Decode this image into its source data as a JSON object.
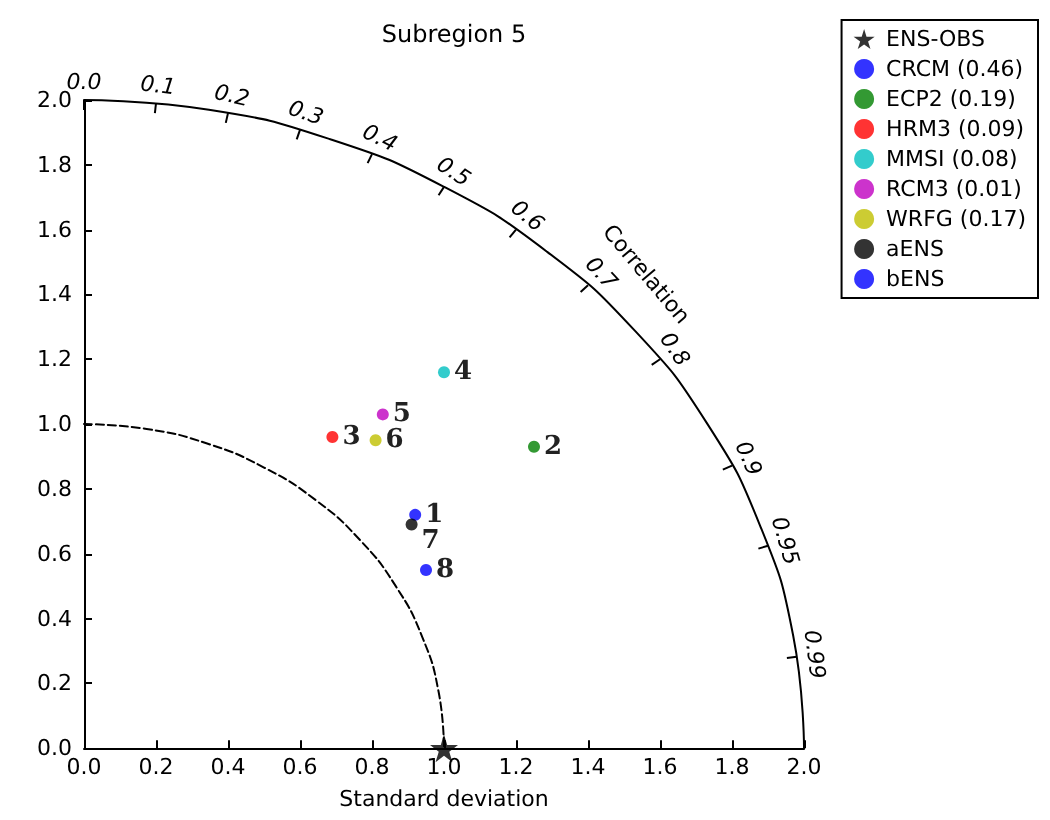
{
  "chart_data": {
    "type": "scatter",
    "title": "Subregion 5",
    "xlabel": "Standard deviation",
    "xlim": [
      0,
      2
    ],
    "ylim": [
      0,
      2
    ],
    "xticks": [
      {
        "value": 0,
        "label": "0.0"
      },
      {
        "value": 0.2,
        "label": "0.2"
      },
      {
        "value": 0.4,
        "label": "0.4"
      },
      {
        "value": 0.6,
        "label": "0.6"
      },
      {
        "value": 0.8,
        "label": "0.8"
      },
      {
        "value": 1.0,
        "label": "1.0"
      },
      {
        "value": 1.2,
        "label": "1.2"
      },
      {
        "value": 1.4,
        "label": "1.4"
      },
      {
        "value": 1.6,
        "label": "1.6"
      },
      {
        "value": 1.8,
        "label": "1.8"
      },
      {
        "value": 2.0,
        "label": "2.0"
      }
    ],
    "yticks": [
      {
        "value": 0,
        "label": "0.0"
      },
      {
        "value": 0.2,
        "label": "0.2"
      },
      {
        "value": 0.4,
        "label": "0.4"
      },
      {
        "value": 0.6,
        "label": "0.6"
      },
      {
        "value": 0.8,
        "label": "0.8"
      },
      {
        "value": 1.0,
        "label": "1.0"
      },
      {
        "value": 1.2,
        "label": "1.2"
      },
      {
        "value": 1.4,
        "label": "1.4"
      },
      {
        "value": 1.6,
        "label": "1.6"
      },
      {
        "value": 1.8,
        "label": "1.8"
      },
      {
        "value": 2.0,
        "label": "2.0"
      }
    ],
    "grid": false,
    "legend": "top right",
    "series": [
      {
        "name": "ENS-OBS",
        "color": "#000000",
        "marker": "star",
        "x": [
          1.0
        ],
        "values": [
          0
        ]
      },
      {
        "name": "CRCM (0.46)",
        "color": "#0000ff",
        "marker": "circle",
        "x": [
          0.92
        ],
        "values": [
          0.72
        ]
      },
      {
        "name": "ECP2 (0.19)",
        "color": "#008000",
        "marker": "circle",
        "x": [
          1.25
        ],
        "values": [
          0.93
        ]
      },
      {
        "name": "HRM3 (0.09)",
        "color": "#ff0000",
        "marker": "circle",
        "x": [
          0.69
        ],
        "values": [
          0.96
        ]
      },
      {
        "name": "MMSI (0.08)",
        "color": "#00bfbf",
        "marker": "circle",
        "x": [
          1.0
        ],
        "values": [
          1.16
        ]
      },
      {
        "name": "RCM3 (0.01)",
        "color": "#bf00bf",
        "marker": "circle",
        "x": [
          0.83
        ],
        "values": [
          1.03
        ]
      },
      {
        "name": "WRFG (0.17)",
        "color": "#bfbf00",
        "marker": "circle",
        "x": [
          0.81
        ],
        "values": [
          0.95
        ]
      },
      {
        "name": "aENS",
        "color": "#000000",
        "marker": "circle",
        "x": [
          0.91
        ],
        "values": [
          0.69
        ]
      },
      {
        "name": "bENS",
        "color": "#0000ff",
        "marker": "circle",
        "x": [
          0.95
        ],
        "values": [
          0.55
        ]
      },
      {
        "type": "line",
        "color": "#000000",
        "line_style": "dashed",
        "x": [
          0,
          0.174,
          0.342,
          0.5,
          0.643,
          0.766,
          0.866,
          0.94,
          0.985,
          1.0
        ],
        "values": [
          1.0,
          0.985,
          0.94,
          0.866,
          0.766,
          0.643,
          0.5,
          0.342,
          0.174,
          0
        ]
      },
      {
        "type": "line",
        "color": "#000000",
        "line_style": "solid",
        "x": [
          0,
          0.347,
          0.684,
          1.0,
          1.286,
          1.532,
          1.732,
          1.879,
          1.97,
          2.0
        ],
        "values": [
          2.0,
          1.97,
          1.879,
          1.732,
          1.532,
          1.286,
          1.0,
          0.684,
          0.347,
          0
        ]
      }
    ],
    "annotations": [
      {
        "text": "1",
        "x": 0.92,
        "y": 0.72
      },
      {
        "text": "2",
        "x": 1.25,
        "y": 0.93
      },
      {
        "text": "3",
        "x": 0.69,
        "y": 0.96
      },
      {
        "text": "4",
        "x": 1.0,
        "y": 1.16
      },
      {
        "text": "5",
        "x": 0.83,
        "y": 1.03
      },
      {
        "text": "6",
        "x": 0.81,
        "y": 0.95
      },
      {
        "text": "7",
        "x": 0.91,
        "y": 0.69
      },
      {
        "text": "8",
        "x": 0.95,
        "y": 0.55
      },
      "0.0",
      "0.1",
      "0.2",
      "0.3",
      "0.4",
      "0.5",
      "0.6",
      "0.7",
      "0.8",
      "0.9",
      "0.95",
      "0.99",
      "Correlation"
    ]
  }
}
